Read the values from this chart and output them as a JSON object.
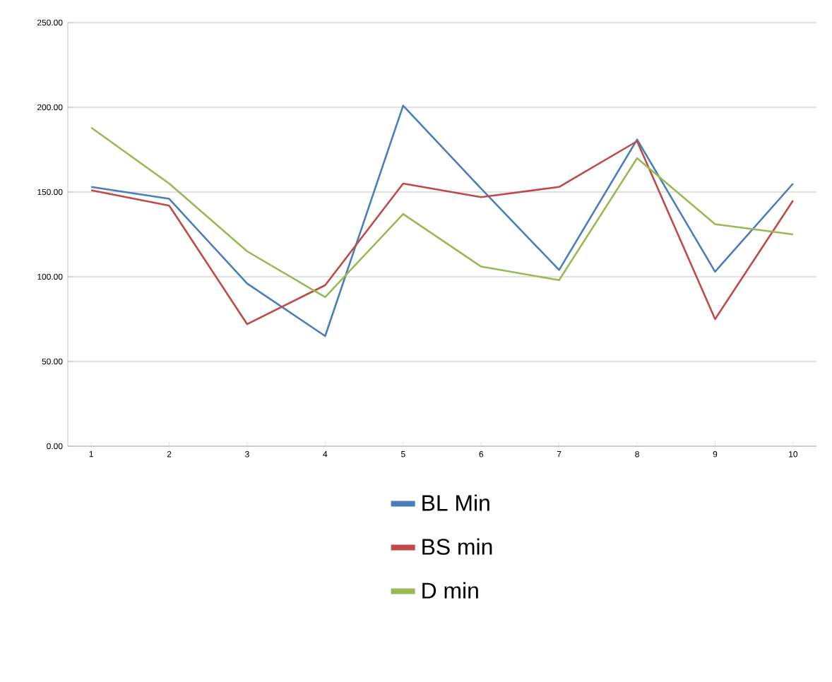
{
  "chart_data": {
    "type": "line",
    "categories": [
      "1",
      "2",
      "3",
      "4",
      "5",
      "6",
      "7",
      "8",
      "9",
      "10"
    ],
    "series": [
      {
        "name": "BL Min",
        "color": "#4a7ebb",
        "values": [
          153,
          146,
          96,
          65,
          201,
          152,
          104,
          181,
          103,
          155
        ]
      },
      {
        "name": "BS min",
        "color": "#be4b48",
        "values": [
          151,
          142,
          72,
          95,
          155,
          147,
          153,
          180,
          75,
          145
        ]
      },
      {
        "name": "D min",
        "color": "#98b954",
        "values": [
          188,
          155,
          115,
          88,
          137,
          106,
          98,
          170,
          131,
          125
        ]
      }
    ],
    "ylim": [
      0,
      250
    ],
    "yticks": [
      {
        "value": 0,
        "label": "0.00"
      },
      {
        "value": 50,
        "label": "50.00"
      },
      {
        "value": 100,
        "label": "100.00"
      },
      {
        "value": 150,
        "label": "150.00"
      },
      {
        "value": 200,
        "label": "200.00"
      },
      {
        "value": 250,
        "label": "250.00"
      }
    ],
    "grid": "y",
    "legend": "bottom",
    "marker": "none",
    "line_style": "solid"
  }
}
